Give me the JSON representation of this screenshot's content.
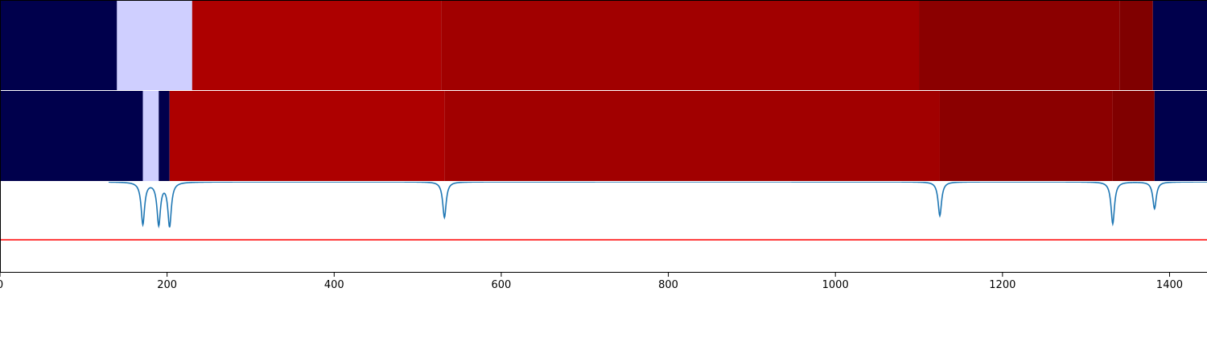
{
  "chart_data": [
    {
      "type": "heatmap",
      "panel": "top-segmentation-strip",
      "x_range": [
        0,
        1440
      ],
      "segments": [
        {
          "start": 0,
          "end": 140,
          "color": "#00004c"
        },
        {
          "start": 140,
          "end": 230,
          "color": "#cfcfff"
        },
        {
          "start": 230,
          "end": 528,
          "color": "#ad0000"
        },
        {
          "start": 528,
          "end": 1100,
          "color": "#a10000"
        },
        {
          "start": 1100,
          "end": 1340,
          "color": "#8b0000"
        },
        {
          "start": 1340,
          "end": 1380,
          "color": "#800000"
        },
        {
          "start": 1380,
          "end": 1440,
          "color": "#00004c"
        }
      ]
    },
    {
      "type": "heatmap",
      "panel": "middle-segmentation-strip",
      "x_range": [
        0,
        1440
      ],
      "segments": [
        {
          "start": 0,
          "end": 171,
          "color": "#00004c"
        },
        {
          "start": 171,
          "end": 190,
          "color": "#cfcfff"
        },
        {
          "start": 190,
          "end": 203,
          "color": "#00004c"
        },
        {
          "start": 203,
          "end": 532,
          "color": "#ad0000"
        },
        {
          "start": 532,
          "end": 1125,
          "color": "#a10000"
        },
        {
          "start": 1125,
          "end": 1332,
          "color": "#8b0000"
        },
        {
          "start": 1332,
          "end": 1382,
          "color": "#800000"
        },
        {
          "start": 1382,
          "end": 1440,
          "color": "#00004c"
        }
      ]
    },
    {
      "type": "line",
      "panel": "boundary-signal",
      "x_range": [
        0,
        1440
      ],
      "y_range": [
        0,
        1.0
      ],
      "threshold": {
        "value": 0.35,
        "color": "#ff0000"
      },
      "series": [
        {
          "color": "#1f77b4",
          "baseline": 1.0,
          "dips": [
            {
              "center": 171,
              "depth": 0.47,
              "width": 2.5
            },
            {
              "center": 190,
              "depth": 0.47,
              "width": 2.5
            },
            {
              "center": 203,
              "depth": 0.49,
              "width": 2.5
            },
            {
              "center": 532,
              "depth": 0.4,
              "width": 2.5
            },
            {
              "center": 1125,
              "depth": 0.38,
              "width": 2.5
            },
            {
              "center": 1332,
              "depth": 0.47,
              "width": 2.5
            },
            {
              "center": 1382,
              "depth": 0.3,
              "width": 2.5
            }
          ]
        }
      ],
      "xticks": [
        0,
        200,
        400,
        600,
        800,
        1000,
        1200,
        1400
      ]
    }
  ]
}
